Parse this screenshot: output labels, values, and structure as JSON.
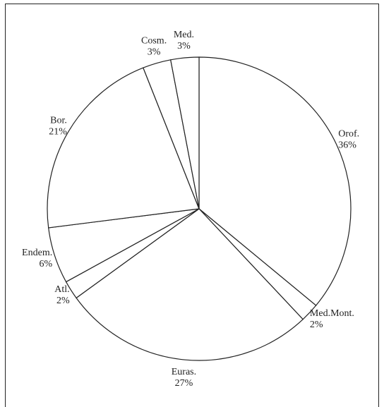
{
  "chart_data": {
    "type": "pie",
    "categories": [
      "Orof.",
      "Med.Mont.",
      "Euras.",
      "Atl.",
      "Endem.",
      "Bor.",
      "Cosm.",
      "Med."
    ],
    "values": [
      36,
      2,
      27,
      2,
      6,
      21,
      3,
      3
    ],
    "value_labels": [
      "36%",
      "2%",
      "27%",
      "2%",
      "6%",
      "21%",
      "3%",
      "3%"
    ],
    "color": "#ffffff"
  }
}
